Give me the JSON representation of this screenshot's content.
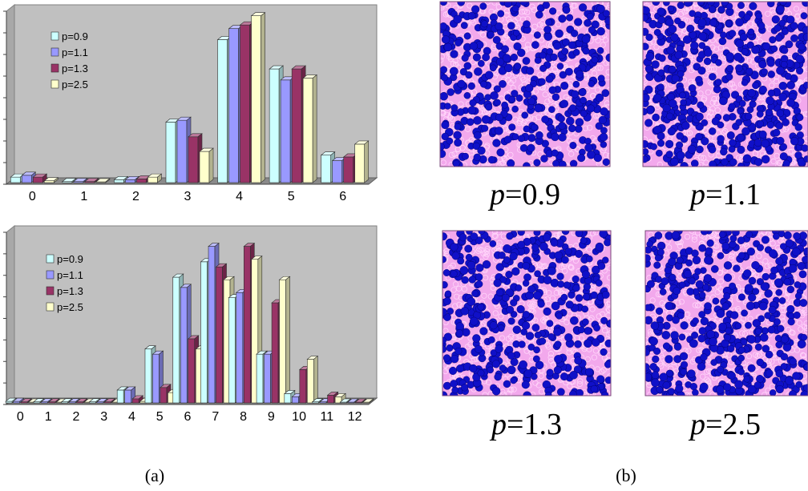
{
  "captions": {
    "left": "(a)",
    "right": "(b)"
  },
  "colors": {
    "series": [
      "#ccffff",
      "#9999ff",
      "#993366",
      "#ffffcc"
    ],
    "plot_bg": "#c0c0c0",
    "sim_bg": "#f2a8ec",
    "particle": "#1010c8"
  },
  "chart_data": [
    {
      "type": "bar",
      "title": "",
      "xlabel": "",
      "ylabel": "",
      "grid": false,
      "legend_position": "top-left",
      "categories": [
        "0",
        "1",
        "2",
        "3",
        "4",
        "5",
        "6"
      ],
      "ylim": [
        0,
        45
      ],
      "series": [
        {
          "name": "p=0.9",
          "values": [
            1.5,
            0.3,
            0.8,
            16.5,
            39.0,
            31.0,
            7.5
          ]
        },
        {
          "name": "p=1.1",
          "values": [
            2.0,
            0.3,
            0.8,
            17.0,
            42.0,
            28.0,
            6.0
          ]
        },
        {
          "name": "p=1.3",
          "values": [
            1.5,
            0.3,
            1.0,
            12.5,
            43.0,
            31.0,
            7.0
          ]
        },
        {
          "name": "p=2.5",
          "values": [
            0.5,
            0.2,
            1.5,
            8.5,
            45.5,
            28.5,
            10.5
          ]
        }
      ]
    },
    {
      "type": "bar",
      "title": "",
      "xlabel": "",
      "ylabel": "",
      "grid": false,
      "legend_position": "top-left",
      "categories": [
        "0",
        "1",
        "2",
        "3",
        "4",
        "5",
        "6",
        "7",
        "8",
        "9",
        "10",
        "11",
        "12"
      ],
      "ylim": [
        0,
        32
      ],
      "series": [
        {
          "name": "p=0.9",
          "values": [
            0.3,
            0.2,
            0.2,
            0.2,
            2.5,
            10.5,
            24.5,
            27.5,
            20.5,
            9.5,
            1.8,
            0.2,
            0.1
          ]
        },
        {
          "name": "p=1.1",
          "values": [
            0.3,
            0.2,
            0.2,
            0.2,
            2.5,
            9.5,
            22.5,
            30.5,
            21.5,
            9.5,
            1.2,
            0.2,
            0.1
          ]
        },
        {
          "name": "p=1.3",
          "values": [
            0.2,
            0.2,
            0.2,
            0.2,
            0.8,
            3.0,
            12.5,
            26.5,
            30.5,
            19.5,
            6.5,
            1.5,
            0.1
          ]
        },
        {
          "name": "p=2.5",
          "values": [
            0.1,
            0.1,
            0.1,
            0.1,
            0.3,
            2.0,
            10.5,
            24.0,
            28.0,
            24.0,
            8.5,
            1.2,
            0.1
          ]
        }
      ]
    }
  ],
  "simulation_panels": [
    {
      "label_var": "p",
      "label_value": "=0.9",
      "particles": 420
    },
    {
      "label_var": "p",
      "label_value": "=1.1",
      "particles": 520
    },
    {
      "label_var": "p",
      "label_value": "=1.3",
      "particles": 440
    },
    {
      "label_var": "p",
      "label_value": "=2.5",
      "particles": 470
    }
  ]
}
